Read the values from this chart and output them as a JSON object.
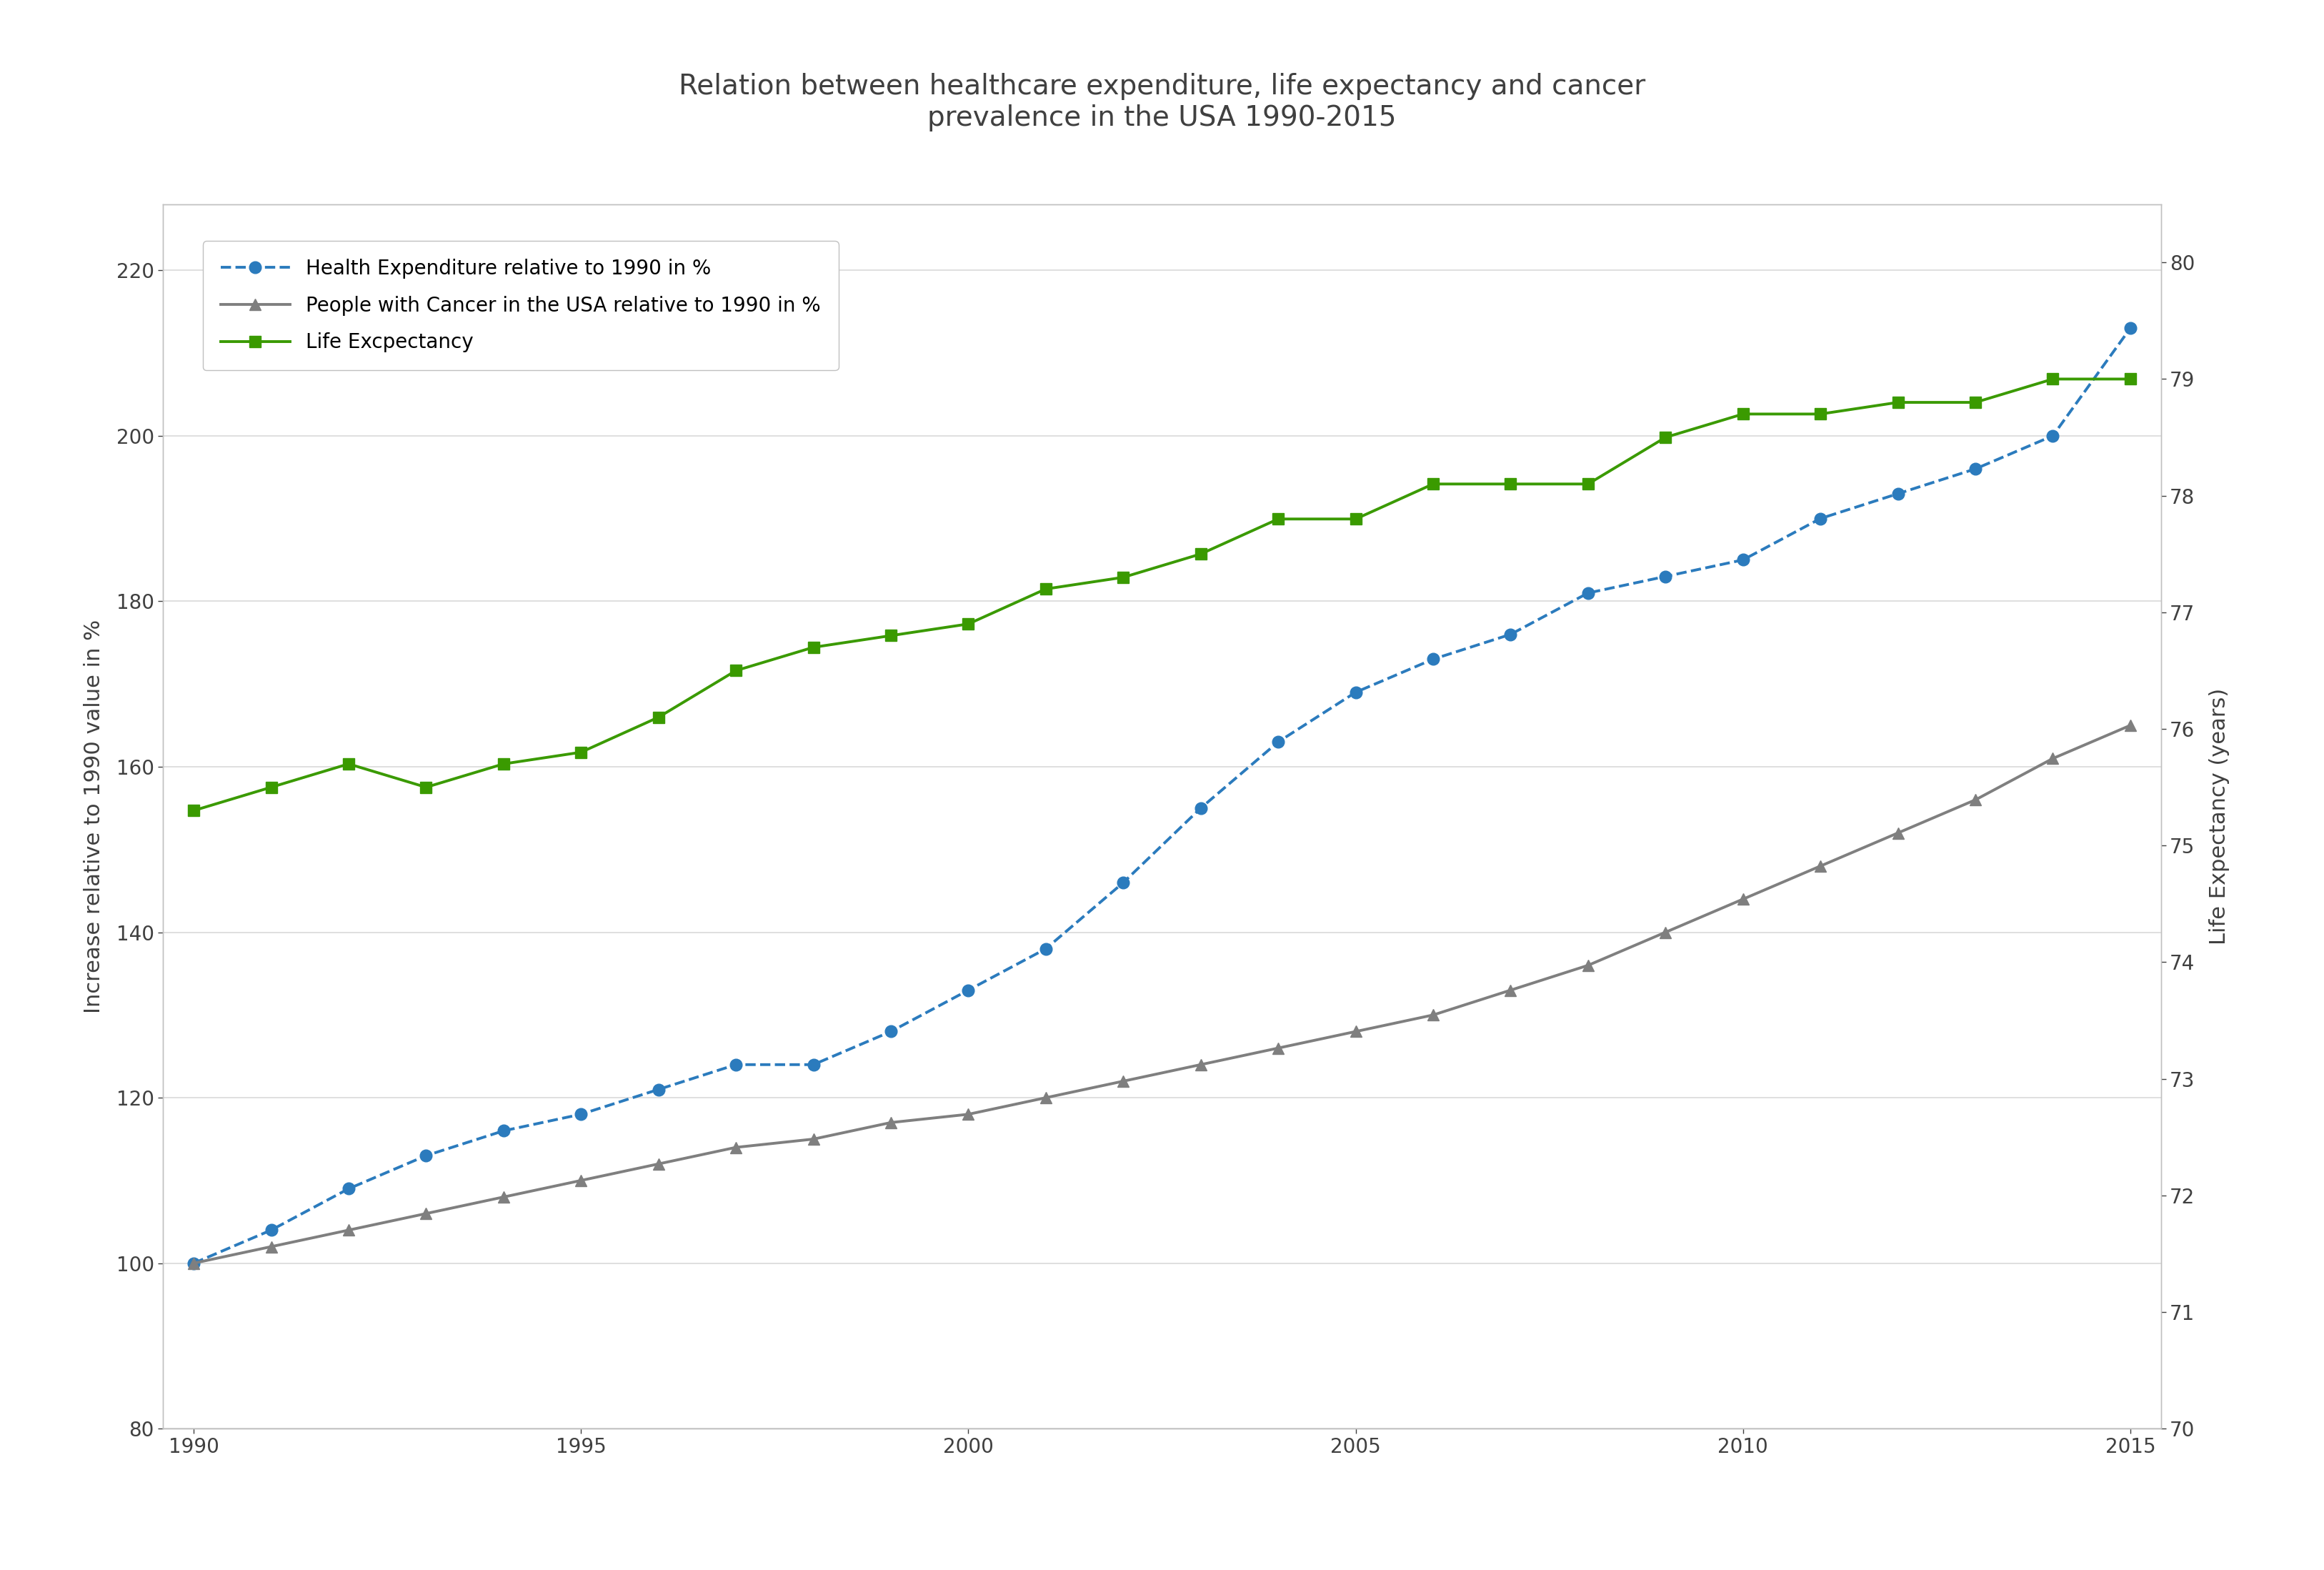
{
  "title": "Relation between healthcare expenditure, life expectancy and cancer\nprevalence in the USA 1990-2015",
  "ylabel_left": "Increase relative to 1990 value in %",
  "ylabel_right": "Life Expectancy (years)",
  "ylim_left": [
    80,
    228
  ],
  "ylim_right": [
    70.0,
    80.5
  ],
  "yticks_left": [
    80,
    100,
    120,
    140,
    160,
    180,
    200,
    220
  ],
  "yticks_right": [
    70,
    71,
    72,
    73,
    74,
    75,
    76,
    77,
    78,
    79,
    80
  ],
  "xlim": [
    1989.6,
    2015.4
  ],
  "xticks": [
    1990,
    1995,
    2000,
    2005,
    2010,
    2015
  ],
  "health_exp_x": [
    1990,
    1991,
    1992,
    1993,
    1994,
    1995,
    1996,
    1997,
    1998,
    1999,
    2000,
    2001,
    2002,
    2003,
    2004,
    2005,
    2006,
    2007,
    2008,
    2009,
    2010,
    2011,
    2012,
    2013,
    2014,
    2015
  ],
  "health_exp_y": [
    100,
    104,
    109,
    113,
    116,
    118,
    121,
    124,
    124,
    128,
    133,
    138,
    146,
    155,
    163,
    169,
    173,
    176,
    181,
    183,
    185,
    190,
    193,
    196,
    200,
    213
  ],
  "cancer_x": [
    1990,
    1991,
    1992,
    1993,
    1994,
    1995,
    1996,
    1997,
    1998,
    1999,
    2000,
    2001,
    2002,
    2003,
    2004,
    2005,
    2006,
    2007,
    2008,
    2009,
    2010,
    2011,
    2012,
    2013,
    2014,
    2015
  ],
  "cancer_y": [
    100,
    102,
    104,
    106,
    108,
    110,
    112,
    114,
    115,
    117,
    118,
    120,
    122,
    124,
    126,
    128,
    130,
    133,
    136,
    140,
    144,
    148,
    152,
    156,
    161,
    165
  ],
  "life_exp_x": [
    1990,
    1991,
    1992,
    1993,
    1994,
    1995,
    1996,
    1997,
    1998,
    1999,
    2000,
    2001,
    2002,
    2003,
    2004,
    2005,
    2006,
    2007,
    2008,
    2009,
    2010,
    2011,
    2012,
    2013,
    2014,
    2015
  ],
  "life_exp_y": [
    75.3,
    75.5,
    75.7,
    75.5,
    75.7,
    75.8,
    76.1,
    76.5,
    76.7,
    76.8,
    76.9,
    77.2,
    77.3,
    77.5,
    77.8,
    77.8,
    78.1,
    78.1,
    78.1,
    78.5,
    78.7,
    78.7,
    78.8,
    78.8,
    79.0,
    79.0
  ],
  "health_exp_color": "#2B7BBD",
  "cancer_color": "#7f7f7f",
  "life_exp_color": "#3a9a00",
  "background_color": "#ffffff",
  "grid_color": "#d9d9d9",
  "spine_color": "#c0c0c0",
  "text_color": "#404040",
  "legend_health": "Health Expenditure relative to 1990 in %",
  "legend_cancer": "People with Cancer in the USA relative to 1990 in %",
  "legend_life": "Life Excpectancy",
  "title_fontsize": 28,
  "label_fontsize": 22,
  "tick_fontsize": 20,
  "legend_fontsize": 20
}
